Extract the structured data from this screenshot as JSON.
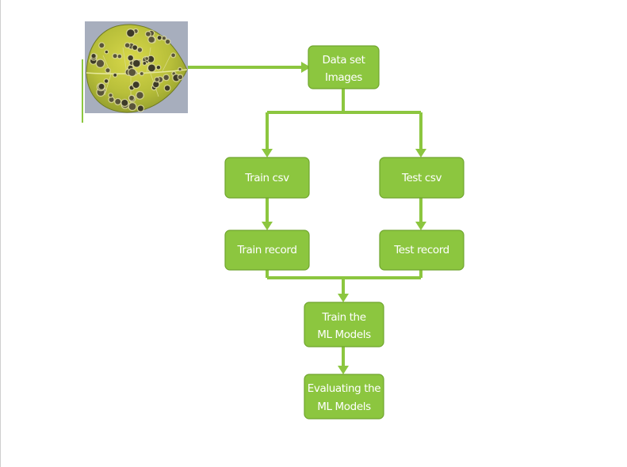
{
  "diagram": {
    "accent_color": "#8cc63f",
    "image": {
      "icon": "diseased-leaf-photo"
    },
    "nodes": [
      {
        "id": "dataset",
        "lines": [
          "Data set",
          "Images"
        ]
      },
      {
        "id": "train_csv",
        "lines": [
          "Train csv"
        ]
      },
      {
        "id": "test_csv",
        "lines": [
          "Test csv"
        ]
      },
      {
        "id": "train_record",
        "lines": [
          "Train record"
        ]
      },
      {
        "id": "test_record",
        "lines": [
          "Test record"
        ]
      },
      {
        "id": "train_models",
        "lines": [
          "Train the",
          "ML Models"
        ]
      },
      {
        "id": "evaluate_models",
        "lines": [
          "Evaluating the",
          "ML Models"
        ]
      }
    ],
    "edges": [
      {
        "from": "image",
        "to": "dataset"
      },
      {
        "from": "dataset",
        "to": "train_csv"
      },
      {
        "from": "dataset",
        "to": "test_csv"
      },
      {
        "from": "train_csv",
        "to": "train_record"
      },
      {
        "from": "test_csv",
        "to": "test_record"
      },
      {
        "from": "train_record",
        "to": "train_models"
      },
      {
        "from": "test_record",
        "to": "train_models"
      },
      {
        "from": "train_models",
        "to": "evaluate_models"
      }
    ]
  }
}
